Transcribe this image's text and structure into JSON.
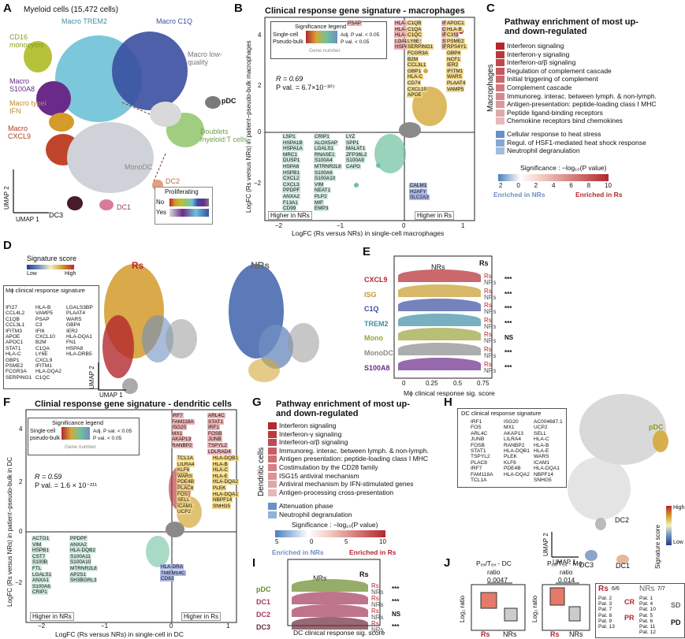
{
  "panels": {
    "A": {
      "letter": "A",
      "title": "Myeloid cells (15,472 cells)",
      "clusters": [
        "Macro TREM2",
        "Macro C1Q",
        "CD16 monocytes",
        "Macro low-quality",
        "Macro S100A8",
        "pDC",
        "Macro typeI IFN",
        "Doublets myeloid:T cells",
        "Macro CXCL9",
        "MonoDC",
        "DC2",
        "DC3",
        "DC1"
      ],
      "umap1": "UMAP 1",
      "umap2": "UMAP 2",
      "prolif_title": "Proliferating",
      "prolif_no": "No",
      "prolif_yes": "Yes"
    },
    "B": {
      "letter": "B",
      "title": "Clinical response gene signature - macrophages",
      "legend_title": "Significance legend",
      "legend_single": "Single-cell",
      "legend_pseudo": "Pseudo-bulk",
      "legend_adj": "Adj. P val. < 0.05",
      "legend_p": "P val. < 0.05",
      "legend_gene": "Gene number",
      "r": "R = 0.69",
      "pval": "P val. = 6.7×10⁻³⁰⁷",
      "ylabel": "LogFC (Rs versus NRs) in patient−pseudo-bulk macrophages",
      "xlabel": "LogFC (Rs versus NRs) in single-cell macrophages",
      "higher_nrs": "Higher in NRs",
      "higher_rs": "Higher in Rs",
      "xticks": [
        "−2",
        "−1",
        "0",
        "1"
      ],
      "yticks": [
        "4",
        "2",
        "0",
        "−2"
      ],
      "genes_red": [
        "IFI27",
        "CCL4L2",
        "IFITM3",
        "STAT1",
        "IFI6",
        "HLA-DQA2",
        "HLA-DQA1",
        "HLA-DRB5",
        "LGALS3BP",
        "HSPA8",
        "PSAP"
      ],
      "genes_yel": [
        "C1QB",
        "C1QA",
        "C1QC",
        "LY6E",
        "SERPING1",
        "FCGR3A",
        "B2M",
        "CCL3L1",
        "GBP1",
        "HLA-C",
        "CD74",
        "CXCL10",
        "APOE",
        "APOC1",
        "HLA-B",
        "C3",
        "PSME2",
        "RPS4Y1",
        "GBP4",
        "NCF1",
        "IER2",
        "IFITM1",
        "WARS",
        "PLAAT4",
        "VAMP5"
      ],
      "genes_grn": [
        "LSP1",
        "HSPA1B",
        "HSPA1A",
        "MRC1",
        "DUSP1",
        "HSPA6",
        "HSPB1",
        "CXCL2",
        "CXCL3",
        "PPDPF",
        "ANXA2",
        "F13A1",
        "CD99",
        "CRIP1",
        "ALOX5AP",
        "LGALS1",
        "RNASE1",
        "S100A4",
        "MTRNR2L8",
        "S100A6",
        "S100A10",
        "VIM",
        "NEAT1",
        "PLP2",
        "MIF",
        "EMP3",
        "LYZ",
        "SPP1",
        "MALAT1",
        "ZFP36L2",
        "S100A9",
        "CAPG"
      ],
      "genes_blu": [
        "CALM1",
        "H2AFY",
        "SLC2A3"
      ]
    },
    "C": {
      "letter": "C",
      "title": "Pathway enrichment of most up- and down-regulated",
      "side": "Macrophages",
      "up": [
        "Interferon signaling",
        "Interferon-γ signaling",
        "Interferon-α/β signaling",
        "Regulation of complement cascade",
        "Initial triggering of complement",
        "Complement cascade",
        "Immunoreg. interac. between lymph. & non-lymph.",
        "Antigen-presentation: peptide-loading class I MHC",
        "Peptide ligand-binding receptors",
        "Chemokine receptors bind chemokines"
      ],
      "down": [
        "Cellular response to heat stress",
        "Regul. of HSF1-mediated heat shock response",
        "Neutrophil degranulation"
      ],
      "sig_label": "Significance : −log₁₀(P value)",
      "ticks": [
        "2",
        "0",
        "2",
        "4",
        "6",
        "8",
        "10"
      ],
      "enr_nrs": "Enriched in NRs",
      "enr_rs": "Enriched in Rs"
    },
    "D": {
      "letter": "D",
      "score_title": "Signature score",
      "low": "Low",
      "high": "High",
      "rs": "Rs",
      "nrs": "NRs",
      "box_title": "Mϕ clinical response signature",
      "col1": [
        "IFI27",
        "CCL4L2",
        "C1QB",
        "CCL3L1",
        "IFITM3",
        "APOE",
        "APOC1",
        "STAT1",
        "HLA-C",
        "GBP1",
        "PSME2",
        "FCGR3A",
        "SERPING1"
      ],
      "col2": [
        "HLA-B",
        "VAMP5",
        "PSAP",
        "C3",
        "IFI6",
        "CXCL10",
        "B2M",
        "C1QA",
        "LY6E",
        "CXCL9",
        "IFITM1",
        "HLA-DQA2",
        "C1QC"
      ],
      "col3": [
        "LGALS3BP",
        "PLAAT4",
        "WARS",
        "GBP4",
        "IER2",
        "HLA-DQA1",
        "FN1",
        "HSPA8",
        "HLA-DRB5"
      ],
      "umap1": "UMAP 1",
      "umap2": "UMAP 2"
    },
    "E": {
      "letter": "E",
      "nrs": "NRs",
      "rs": "Rs",
      "rows": [
        {
          "name": "CXCL9",
          "color": "#b3282d",
          "sig": "***"
        },
        {
          "name": "ISG",
          "color": "#c79a2b",
          "sig": "***"
        },
        {
          "name": "C1Q",
          "color": "#3a4fa0",
          "sig": "***"
        },
        {
          "name": "TREM2",
          "color": "#3f8ea6",
          "sig": "***"
        },
        {
          "name": "Mono",
          "color": "#9aa23a",
          "sig": "NS"
        },
        {
          "name": "MonoDC",
          "color": "#8a8a8a",
          "sig": "***"
        },
        {
          "name": "S100A8",
          "color": "#6a2a8a",
          "sig": "***"
        }
      ],
      "xlabel": "Mϕ clinical response sig. score",
      "xticks": [
        "0",
        "0.25",
        "0.5",
        "0.75"
      ]
    },
    "F": {
      "letter": "F",
      "title": "Clinial response gene signature - dendritic cells",
      "legend_title": "Significance legend",
      "legend_single": "Single-cell",
      "legend_pseudo": "pseudo-bulk",
      "legend_adj": "Adj. P val. < 0.05",
      "legend_p": "P val. < 0.05",
      "legend_gene": "Gene number",
      "r": "R = 0.59",
      "pval": "P val. = 1.6 × 10⁻²¹¹",
      "ylabel": "LogFC (Rs versus NRs) in patient−pseudo-bulk in DC",
      "xlabel": "LogFC (Rs versus NRs) in single-cell in DC",
      "higher_nrs": "Higher in NRs",
      "higher_rs": "Higher in Rs",
      "xticks": [
        "−2",
        "−1",
        "0",
        "1"
      ],
      "yticks": [
        "4",
        "2",
        "0",
        "−2"
      ],
      "genes_red": [
        "ARL4C",
        "STAT1",
        "IRF1",
        "FOSB",
        "JUNB",
        "TSPYL2",
        "LDLRAD4",
        "IRF7",
        "FAM118A",
        "ISG20",
        "MX1",
        "AKAP13",
        "RANBP2"
      ],
      "genes_yel": [
        "TCL1A",
        "LILRA4",
        "KLF6",
        "WARS",
        "PDE4B",
        "PLAC8",
        "FOS",
        "SELL",
        "ICAM1",
        "UCP2",
        "HLA-DQB1",
        "HLA-B",
        "HLA-C",
        "HLA-E",
        "HLA-DQA2",
        "PLEK",
        "HLA-DQA1",
        "NBPF14",
        "SNHG5"
      ],
      "genes_grn": [
        "ACTG1",
        "VIM",
        "HSPB1",
        "CST7",
        "S100B",
        "FTL",
        "LGALS1",
        "ANXA1",
        "S100A6",
        "CRIP1",
        "PPDPF",
        "ANXA2",
        "HLA-DQB2",
        "S100A11",
        "S100A10",
        "MTRNR2L8",
        "AP2S1",
        "SH3BGRL3"
      ],
      "genes_blu": [
        "HLA-DRA",
        "TMEM14C",
        "CD63"
      ]
    },
    "G": {
      "letter": "G",
      "title": "Pathway enrichment of most up- and down-regulated",
      "side": "Dendritic cells",
      "up": [
        "Interferon signaling",
        "Interferon-γ signaling",
        "Interferon-α/β signaling",
        "Immunoreg. interac. between lymph. & non-lymph.",
        "Antigen presentation: peptide-loading class I MHC",
        "Costimulation by the CD28 family",
        "ISG15 antiviral mechanism",
        "Antiviral mechanism by IFN-stimulated genes",
        "Antigen-processing cross-presentation"
      ],
      "down": [
        "Attenuation phase",
        "Neutrophil degranulation"
      ],
      "sig_label": "Significance : −log₁₀(P value)",
      "ticks": [
        "5",
        "0",
        "5",
        "10"
      ],
      "enr_nrs": "Enriched in NRs",
      "enr_rs": "Enriched in Rs"
    },
    "H": {
      "letter": "H",
      "box_title": "DC clinical response signature",
      "col1": [
        "IRF1",
        "FOS",
        "ARL4C",
        "JUNB",
        "FOSB",
        "STAT1",
        "TSPYL2",
        "PLAC8",
        "IRF7",
        "FAM118A",
        "TCL1A"
      ],
      "col2": [
        "ISG20",
        "MX1",
        "AKAP13",
        "LILRA4",
        "RANBP2",
        "HLA-DQB1",
        "PLEK",
        "KLF6",
        "PDE4B",
        "HLA-DQA2"
      ],
      "col3": [
        "AC004687.1",
        "UCP2",
        "SELL",
        "HLA-C",
        "HLA-B",
        "HLA-E",
        "WARS",
        "ICAM1",
        "HLA-DQA1",
        "NBPF14",
        "SNHG5"
      ],
      "clusters": [
        "pDC",
        "DC2",
        "DC3",
        "DC1"
      ],
      "score": "Signature score",
      "high": "High",
      "low": "Low",
      "umap1": "UMAP 1",
      "umap2": "UMAP 2"
    },
    "I": {
      "letter": "I",
      "nrs": "NRs",
      "rs": "Rs",
      "rows": [
        {
          "name": "pDC",
          "color": "#6a8a2a",
          "sig": "***"
        },
        {
          "name": "DC1",
          "color": "#a33a5a",
          "sig": "***"
        },
        {
          "name": "DC2",
          "color": "#a33a5a",
          "sig": "NS"
        },
        {
          "name": "DC3",
          "color": "#6a2a3a",
          "sig": "***"
        }
      ],
      "xlabel": "DC clinical response sig. score",
      "xticks": [
        "0",
        "0.2",
        "0.4",
        "0.6"
      ]
    },
    "J": {
      "letter": "J",
      "t1": "Pₑₓ/Tₑₓ - DC",
      "t1b": "ratio",
      "t2": "Pₑₓ/Tₑₓ - Mϕ",
      "t2b": "ratio",
      "p1": "0.0047",
      "p2": "0.014",
      "ylab": "Log₂ ratio",
      "rs": "Rs",
      "nrs": "NRs",
      "rs_count": "6/6",
      "nrs_count": "7/7",
      "rs_pats": [
        "Pat. 2",
        "Pat. 3",
        "Pat. 7",
        "Pat. 8",
        "Pat. 9",
        "Pat. 13"
      ],
      "nrs_pats": [
        "Pat. 1",
        "Pat. 4",
        "Pat. 10",
        "Pat. 5",
        "Pat. 6",
        "Pat. 11",
        "Pat. 12"
      ],
      "cr": "CR",
      "pr": "PR",
      "sd": "SD",
      "pd": "PD",
      "yticks1": [
        "2",
        "0",
        "−2"
      ],
      "yticks2": [
        "2",
        "0",
        "−2",
        "−4"
      ]
    }
  },
  "colors": {
    "rs_red": "#b3282d",
    "nrs_blue": "#6f8fc0",
    "gold": "#d4a83a",
    "green_dot": "#6fc1a0"
  }
}
